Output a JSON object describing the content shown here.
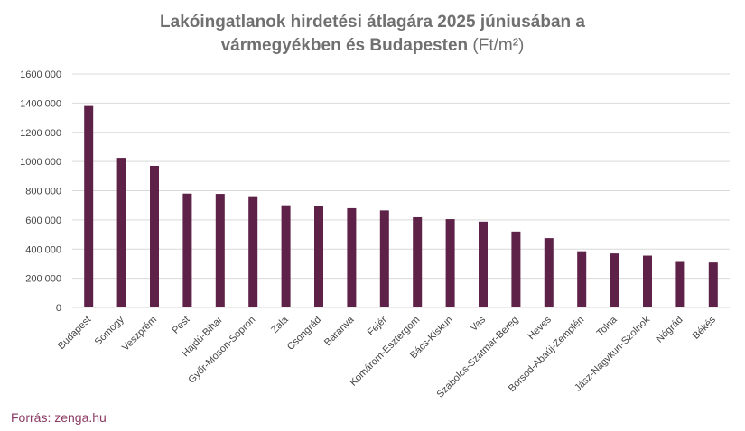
{
  "title": {
    "line1": "Lakóingatlanok hirdetési átlagára 2025 júniusában a",
    "line2": "vármegyékben és Budapesten",
    "unit": "(Ft/m²)"
  },
  "source": "Forrás: zenga.hu",
  "colors": {
    "bar": "#5e2147",
    "grid": "#d9d9d9",
    "source": "#8a3a63"
  },
  "chart_data": {
    "type": "bar",
    "categories": [
      "Budapest",
      "Somogy",
      "Veszprém",
      "Pest",
      "Hajdú-Bihar",
      "Győr-Moson-Sopron",
      "Zala",
      "Csongrád",
      "Baranya",
      "Fejér",
      "Komárom-Esztergom",
      "Bács-Kiskun",
      "Vas",
      "Szabolcs-Szatmár-Bereg",
      "Heves",
      "Borsod-Abaúj-Zemplén",
      "Tolna",
      "Jász-Nagykun-Szolnok",
      "Nógrád",
      "Békés"
    ],
    "values": [
      1380000,
      1025000,
      970000,
      780000,
      778000,
      762000,
      700000,
      692000,
      680000,
      665000,
      618000,
      605000,
      588000,
      520000,
      475000,
      385000,
      370000,
      355000,
      312000,
      308000
    ],
    "ylim": [
      0,
      1600000
    ],
    "yticks": [
      0,
      200000,
      400000,
      600000,
      800000,
      1000000,
      1200000,
      1400000,
      1600000
    ],
    "ytick_labels": [
      "0",
      "200 000",
      "400 000",
      "600 000",
      "800 000",
      "1000 000",
      "1200 000",
      "1400 000",
      "1600 000"
    ],
    "grid": true,
    "legend": "none"
  }
}
